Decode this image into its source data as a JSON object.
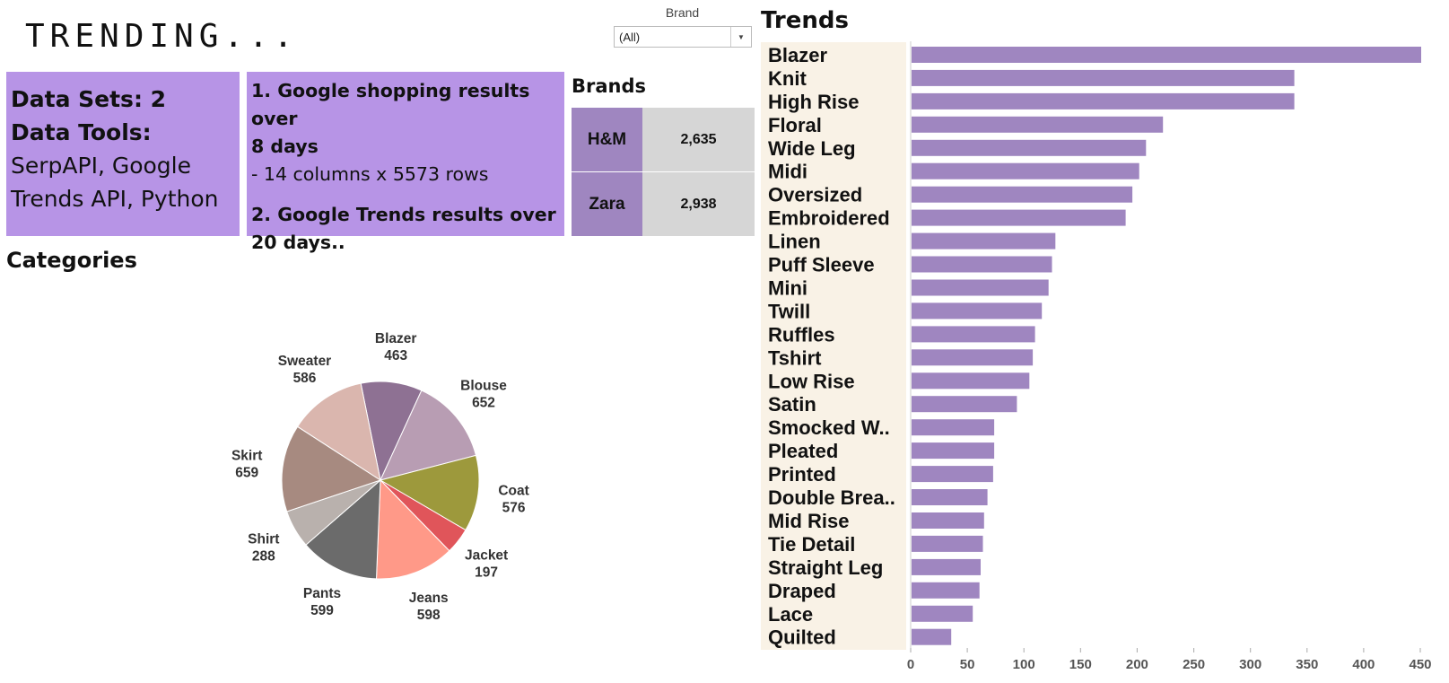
{
  "header": {
    "title": "TRENDING..."
  },
  "info": {
    "data_sets": "Data Sets: 2",
    "data_tools_label": "Data Tools:",
    "data_tools_line1": "SerpAPI, Google",
    "data_tools_line2": "Trends API, Python",
    "desc1_line1": "1. Google shopping results over",
    "desc1_line2": "8 days",
    "desc1_line3": "- 14 columns x 5573 rows",
    "desc2_line1": "2. Google Trends results over",
    "desc2_line2": "20 days.."
  },
  "filter": {
    "label": "Brand",
    "selected": "(All)"
  },
  "brands": {
    "title": "Brands",
    "rows": [
      {
        "name": "H&M",
        "value": "2,635"
      },
      {
        "name": "Zara",
        "value": "2,938"
      }
    ]
  },
  "colors": {
    "info_bg": "#b794e6",
    "trend_bar": "#9f86c0",
    "trend_label_bg": "#f9f2e6"
  },
  "chart_data": [
    {
      "type": "pie",
      "title": "Categories",
      "slices": [
        {
          "label": "Blazer",
          "value": 463,
          "color": "#8e7193"
        },
        {
          "label": "Blouse",
          "value": 652,
          "color": "#b89db3"
        },
        {
          "label": "Coat",
          "value": 576,
          "color": "#9d993c"
        },
        {
          "label": "Jacket",
          "value": 197,
          "color": "#e0555a"
        },
        {
          "label": "Jeans",
          "value": 598,
          "color": "#ff9988"
        },
        {
          "label": "Pants",
          "value": 599,
          "color": "#6b6b6b"
        },
        {
          "label": "Shirt",
          "value": 288,
          "color": "#b9b1ad"
        },
        {
          "label": "Skirt",
          "value": 659,
          "color": "#a78a80"
        },
        {
          "label": "Sweater",
          "value": 586,
          "color": "#dab6ae"
        }
      ]
    },
    {
      "type": "bar",
      "orientation": "horizontal",
      "title": "Trends",
      "categories": [
        "Blazer",
        "Knit",
        "High Rise",
        "Floral",
        "Wide Leg",
        "Midi",
        "Oversized",
        "Embroidered",
        "Linen",
        "Puff Sleeve",
        "Mini",
        "Twill",
        "Ruffles",
        "Tshirt",
        "Low Rise",
        "Satin",
        "Smocked W..",
        "Pleated",
        "Printed",
        "Double Brea..",
        "Mid Rise",
        "Tie Detail",
        "Straight Leg",
        "Draped",
        "Lace",
        "Quilted"
      ],
      "values": [
        450,
        338,
        338,
        222,
        207,
        201,
        195,
        189,
        127,
        124,
        121,
        115,
        109,
        107,
        104,
        93,
        73,
        73,
        72,
        67,
        64,
        63,
        61,
        60,
        54,
        35
      ],
      "xlim": [
        0,
        450
      ],
      "xticks": [
        0,
        50,
        100,
        150,
        200,
        250,
        300,
        350,
        400,
        450
      ],
      "xtick_labels": [
        "0",
        "50",
        "100",
        "150",
        "200",
        "250",
        "300",
        "350",
        "400",
        "450"
      ]
    }
  ]
}
